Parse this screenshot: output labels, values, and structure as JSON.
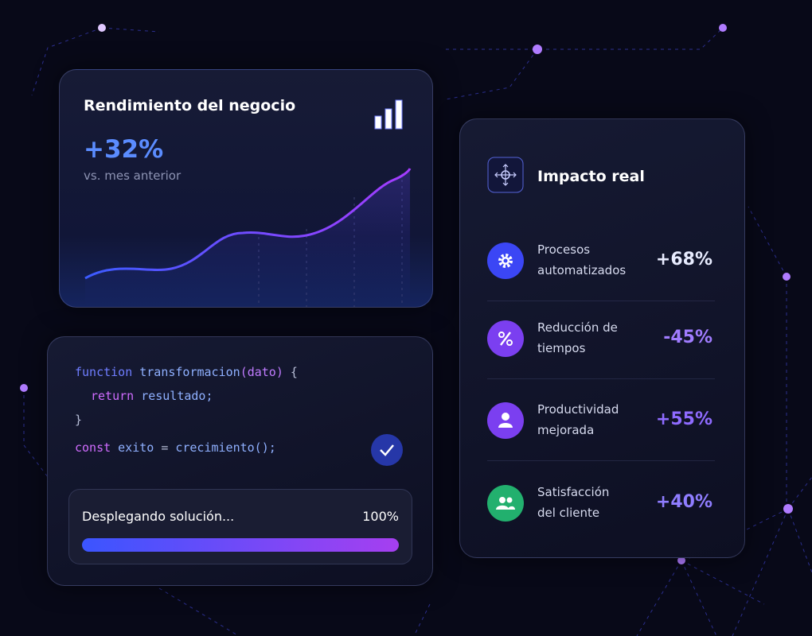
{
  "performance_card": {
    "title": "Rendimiento del negocio",
    "value": "+32%",
    "subtitle": "vs. mes anterior"
  },
  "code_card": {
    "lines": [
      [
        "function",
        "transformacion",
        "(dato)",
        "{"
      ],
      [
        "return",
        "resultado;"
      ],
      [
        "}"
      ],
      [
        "const",
        "exito",
        "=",
        "crecimiento();"
      ]
    ],
    "progress": {
      "label": "Desplegando solución...",
      "percent": "100%"
    }
  },
  "impact_card": {
    "title": "Impacto real",
    "items": [
      {
        "label": [
          "Procesos",
          "automatizados"
        ],
        "value": "+68%"
      },
      {
        "label": [
          "Reducción de",
          "tiempos"
        ],
        "value": "-45%"
      },
      {
        "label": [
          "Productividad",
          "mejorada"
        ],
        "value": "+55%"
      },
      {
        "label": [
          "Satisfacción",
          "del cliente"
        ],
        "value": "+40%"
      }
    ]
  }
}
